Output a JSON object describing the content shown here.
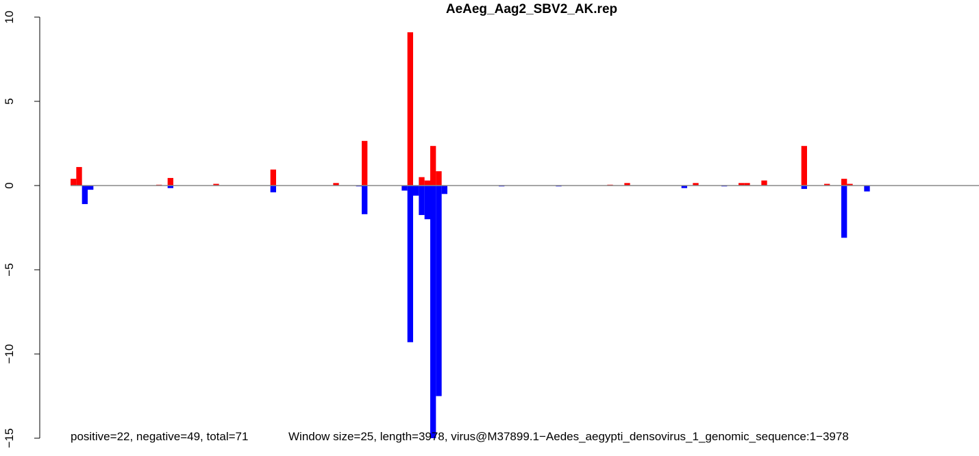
{
  "chart_data": {
    "type": "bar",
    "title": "AeAeg_Aag2_SBV2_AK.rep",
    "xlabel": "",
    "ylabel": "",
    "ylim": [
      -15,
      10
    ],
    "y_ticks": [
      10,
      5,
      0,
      -5,
      -10,
      -15
    ],
    "y_tick_labels": [
      "10",
      "5",
      "0",
      "−5",
      "−10",
      "−15"
    ],
    "x_range": [
      0,
      3978
    ],
    "bin_width": 25,
    "baseline_color": "#888888",
    "series": [
      {
        "name": "positive",
        "color": "#ff0000",
        "bins": [
          {
            "x": 25,
            "value": 0.4
          },
          {
            "x": 50,
            "value": 1.1
          },
          {
            "x": 400,
            "value": 0.05
          },
          {
            "x": 450,
            "value": 0.45
          },
          {
            "x": 650,
            "value": 0.1
          },
          {
            "x": 900,
            "value": 0.95
          },
          {
            "x": 1175,
            "value": 0.15
          },
          {
            "x": 1300,
            "value": 2.65
          },
          {
            "x": 1500,
            "value": 9.1
          },
          {
            "x": 1550,
            "value": 0.5
          },
          {
            "x": 1575,
            "value": 0.3
          },
          {
            "x": 1600,
            "value": 2.35
          },
          {
            "x": 1625,
            "value": 0.85
          },
          {
            "x": 2375,
            "value": 0.05
          },
          {
            "x": 2450,
            "value": 0.15
          },
          {
            "x": 2750,
            "value": 0.15
          },
          {
            "x": 2950,
            "value": 0.15
          },
          {
            "x": 2975,
            "value": 0.15
          },
          {
            "x": 3050,
            "value": 0.3
          },
          {
            "x": 3225,
            "value": 2.35
          },
          {
            "x": 3325,
            "value": 0.1
          },
          {
            "x": 3400,
            "value": 0.4
          },
          {
            "x": 3425,
            "value": 0.1
          }
        ]
      },
      {
        "name": "negative",
        "color": "#0000ff",
        "bins": [
          {
            "x": 75,
            "value": -1.1
          },
          {
            "x": 100,
            "value": -0.25
          },
          {
            "x": 450,
            "value": -0.15
          },
          {
            "x": 900,
            "value": -0.4
          },
          {
            "x": 1275,
            "value": -0.05
          },
          {
            "x": 1300,
            "value": -1.7
          },
          {
            "x": 1475,
            "value": -0.3
          },
          {
            "x": 1500,
            "value": -9.3
          },
          {
            "x": 1525,
            "value": -0.6
          },
          {
            "x": 1550,
            "value": -1.75
          },
          {
            "x": 1575,
            "value": -2.0
          },
          {
            "x": 1600,
            "value": -15.0
          },
          {
            "x": 1625,
            "value": -12.5
          },
          {
            "x": 1650,
            "value": -0.5
          },
          {
            "x": 1900,
            "value": -0.05
          },
          {
            "x": 2150,
            "value": -0.05
          },
          {
            "x": 2700,
            "value": -0.15
          },
          {
            "x": 2875,
            "value": -0.05
          },
          {
            "x": 3225,
            "value": -0.2
          },
          {
            "x": 3400,
            "value": -3.1
          },
          {
            "x": 3500,
            "value": -0.35
          }
        ]
      }
    ],
    "footer_left": "positive=22, negative=49, total=71",
    "footer_right": "Window size=25, length=3978, virus@M37899.1−Aedes_aegypti_densovirus_1_genomic_sequence:1−3978"
  }
}
